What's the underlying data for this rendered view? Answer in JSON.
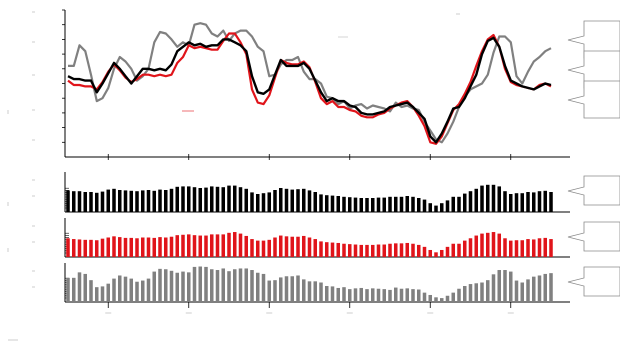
{
  "chart_data": {
    "type": "line",
    "colors": {
      "black": "#000000",
      "red": "#e0141a",
      "gray": "#808080"
    },
    "x": {
      "count": 85,
      "tick_indices": [
        7,
        21,
        35,
        49,
        63,
        77
      ]
    },
    "main_panel": {
      "ylim": [
        0,
        100
      ],
      "y_ticks": [
        10,
        20,
        30,
        40,
        50,
        60,
        70,
        80,
        90,
        100
      ],
      "series": [
        {
          "color": "black",
          "values": [
            55,
            53,
            53,
            52,
            52,
            44,
            50,
            57,
            64,
            60,
            55,
            50,
            55,
            60,
            60,
            59,
            60,
            59,
            63,
            72,
            75,
            78,
            76,
            77,
            75,
            76,
            76,
            80,
            80,
            78,
            76,
            72,
            55,
            44,
            43,
            46,
            56,
            66,
            62,
            62,
            62,
            64,
            60,
            52,
            44,
            38,
            40,
            38,
            38,
            35,
            34,
            30,
            29,
            29,
            30,
            31,
            34,
            35,
            36,
            37,
            34,
            30,
            26,
            14,
            10,
            16,
            24,
            33,
            34,
            40,
            48,
            56,
            70,
            79,
            81,
            75,
            62,
            52,
            50,
            48,
            47,
            46,
            48,
            50,
            49
          ]
        },
        {
          "color": "red",
          "values": [
            52,
            49,
            49,
            48,
            48,
            46,
            51,
            58,
            63,
            59,
            54,
            51,
            53,
            56,
            56,
            55,
            56,
            55,
            56,
            64,
            68,
            76,
            74,
            75,
            74,
            73,
            73,
            79,
            84,
            84,
            78,
            70,
            46,
            37,
            36,
            42,
            54,
            66,
            64,
            63,
            63,
            65,
            61,
            51,
            40,
            36,
            38,
            34,
            34,
            32,
            31,
            28,
            27,
            27,
            29,
            30,
            33,
            35,
            37,
            38,
            34,
            28,
            21,
            10,
            9,
            14,
            23,
            32,
            36,
            43,
            51,
            62,
            72,
            80,
            83,
            75,
            60,
            51,
            49,
            48,
            47,
            46,
            49,
            50,
            48
          ]
        },
        {
          "color": "gray",
          "values": [
            62,
            62,
            76,
            72,
            56,
            38,
            40,
            47,
            60,
            68,
            65,
            60,
            52,
            55,
            60,
            78,
            85,
            84,
            80,
            75,
            78,
            76,
            90,
            91,
            90,
            84,
            82,
            86,
            79,
            84,
            86,
            86,
            82,
            75,
            72,
            55,
            56,
            63,
            66,
            66,
            68,
            58,
            53,
            53,
            50,
            41,
            40,
            36,
            38,
            33,
            35,
            36,
            33,
            35,
            34,
            33,
            31,
            37,
            34,
            35,
            33,
            32,
            24,
            18,
            12,
            10,
            16,
            24,
            34,
            41,
            46,
            48,
            50,
            56,
            71,
            82,
            82,
            78,
            55,
            50,
            58,
            65,
            68,
            72,
            74
          ]
        }
      ]
    },
    "bar_panels": [
      {
        "color": "black",
        "values": [
          54,
          52,
          52,
          50,
          50,
          48,
          51,
          56,
          58,
          55,
          54,
          53,
          52,
          54,
          55,
          53,
          56,
          55,
          58,
          63,
          64,
          64,
          62,
          60,
          61,
          64,
          63,
          62,
          66,
          66,
          62,
          58,
          49,
          45,
          47,
          49,
          55,
          60,
          58,
          56,
          57,
          58,
          54,
          50,
          44,
          42,
          41,
          40,
          38,
          37,
          36,
          35,
          35,
          35,
          36,
          36,
          38,
          38,
          38,
          40,
          38,
          35,
          31,
          22,
          16,
          22,
          29,
          38,
          38,
          46,
          52,
          58,
          66,
          68,
          68,
          64,
          52,
          45,
          47,
          47,
          50,
          49,
          52,
          53,
          50
        ]
      },
      {
        "color": "red",
        "values": [
          48,
          46,
          45,
          44,
          44,
          43,
          47,
          50,
          53,
          51,
          49,
          49,
          48,
          50,
          50,
          49,
          51,
          50,
          52,
          56,
          57,
          58,
          56,
          55,
          55,
          58,
          58,
          58,
          62,
          64,
          60,
          54,
          46,
          42,
          42,
          44,
          50,
          55,
          53,
          52,
          52,
          54,
          50,
          46,
          40,
          38,
          37,
          36,
          34,
          33,
          32,
          31,
          31,
          31,
          32,
          32,
          34,
          35,
          35,
          36,
          34,
          31,
          26,
          18,
          12,
          18,
          26,
          34,
          34,
          42,
          48,
          55,
          60,
          62,
          64,
          60,
          48,
          42,
          43,
          43,
          46,
          45,
          48,
          49,
          46
        ]
      },
      {
        "color": "gray",
        "values": [
          62,
          62,
          76,
          72,
          56,
          38,
          40,
          47,
          60,
          68,
          65,
          60,
          52,
          55,
          60,
          78,
          85,
          84,
          80,
          75,
          78,
          76,
          90,
          91,
          90,
          84,
          82,
          86,
          79,
          84,
          86,
          86,
          82,
          75,
          72,
          55,
          56,
          63,
          66,
          66,
          68,
          58,
          53,
          53,
          50,
          41,
          40,
          36,
          38,
          33,
          35,
          36,
          33,
          35,
          34,
          33,
          31,
          37,
          34,
          35,
          33,
          32,
          24,
          18,
          12,
          10,
          16,
          24,
          34,
          41,
          46,
          48,
          50,
          56,
          71,
          82,
          82,
          78,
          55,
          50,
          58,
          65,
          68,
          72,
          74
        ]
      }
    ]
  }
}
